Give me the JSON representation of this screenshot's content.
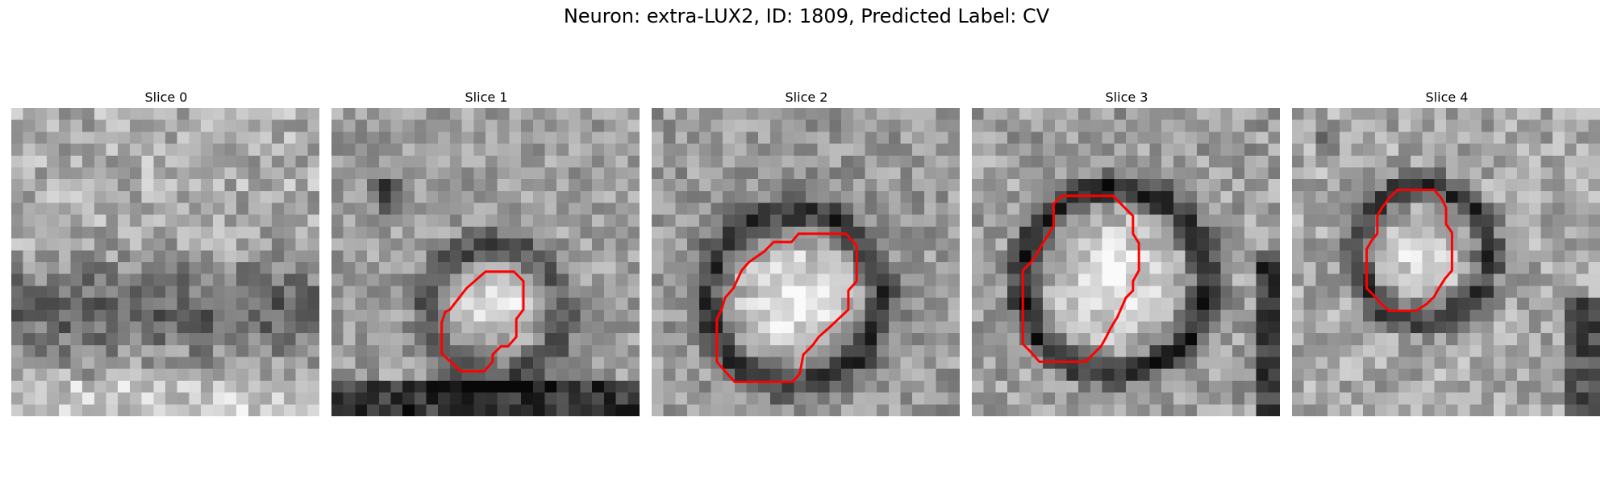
{
  "figure": {
    "title": "Neuron: extra-LUX2, ID: 1809, Predicted Label: CV"
  },
  "colors": {
    "contour": "#ff0000"
  },
  "panels": [
    {
      "title": "Slice 0",
      "contour": []
    },
    {
      "title": "Slice 1",
      "contour": [
        [
          11.4,
          15.2
        ],
        [
          13.0,
          13.8
        ],
        [
          15.4,
          13.8
        ],
        [
          16.2,
          14.6
        ],
        [
          16.2,
          17.0
        ],
        [
          15.6,
          17.8
        ],
        [
          15.6,
          19.3
        ],
        [
          14.9,
          20.1
        ],
        [
          14.3,
          20.1
        ],
        [
          13.6,
          20.8
        ],
        [
          13.6,
          21.4
        ],
        [
          12.9,
          22.2
        ],
        [
          10.9,
          22.2
        ],
        [
          9.3,
          20.7
        ],
        [
          9.3,
          18.1
        ],
        [
          9.6,
          17.2
        ],
        [
          10.0,
          17.0
        ]
      ]
    },
    {
      "title": "Slice 2",
      "contour": [
        [
          9.5,
          12.1
        ],
        [
          10.3,
          11.3
        ],
        [
          11.8,
          11.3
        ],
        [
          12.4,
          10.6
        ],
        [
          16.4,
          10.6
        ],
        [
          17.3,
          11.6
        ],
        [
          17.3,
          14.6
        ],
        [
          16.6,
          15.4
        ],
        [
          16.6,
          17.0
        ],
        [
          14.9,
          18.6
        ],
        [
          14.1,
          19.3
        ],
        [
          13.6,
          20.0
        ],
        [
          12.8,
          20.8
        ],
        [
          12.5,
          22.4
        ],
        [
          11.9,
          23.1
        ],
        [
          7.0,
          23.1
        ],
        [
          6.2,
          22.2
        ],
        [
          5.5,
          21.4
        ],
        [
          5.5,
          17.8
        ],
        [
          5.9,
          17.0
        ],
        [
          6.2,
          16.0
        ],
        [
          6.9,
          15.2
        ],
        [
          7.6,
          13.7
        ],
        [
          8.2,
          13.0
        ]
      ]
    },
    {
      "title": "Slice 3",
      "contour": [
        [
          6.9,
          8.1
        ],
        [
          7.6,
          7.4
        ],
        [
          11.9,
          7.4
        ],
        [
          12.9,
          8.4
        ],
        [
          13.6,
          9.1
        ],
        [
          13.6,
          10.6
        ],
        [
          14.1,
          11.4
        ],
        [
          14.1,
          13.7
        ],
        [
          13.6,
          14.6
        ],
        [
          13.6,
          15.4
        ],
        [
          13.0,
          16.0
        ],
        [
          12.3,
          17.6
        ],
        [
          11.7,
          18.6
        ],
        [
          11.3,
          19.4
        ],
        [
          10.9,
          20.1
        ],
        [
          10.2,
          20.8
        ],
        [
          9.6,
          21.4
        ],
        [
          5.7,
          21.4
        ],
        [
          4.9,
          20.5
        ],
        [
          4.3,
          19.9
        ],
        [
          4.3,
          13.7
        ],
        [
          5.1,
          12.9
        ],
        [
          5.6,
          12.1
        ],
        [
          6.0,
          11.4
        ],
        [
          6.5,
          10.6
        ],
        [
          6.9,
          9.9
        ]
      ]
    },
    {
      "title": "Slice 4",
      "contour": [
        [
          6.7,
          11.2
        ],
        [
          7.2,
          10.6
        ],
        [
          7.2,
          9.1
        ],
        [
          7.6,
          8.4
        ],
        [
          8.2,
          7.6
        ],
        [
          8.9,
          6.9
        ],
        [
          12.0,
          6.9
        ],
        [
          12.6,
          7.6
        ],
        [
          13.0,
          8.4
        ],
        [
          13.0,
          9.8
        ],
        [
          13.5,
          10.5
        ],
        [
          13.5,
          13.7
        ],
        [
          12.9,
          14.4
        ],
        [
          12.4,
          15.2
        ],
        [
          12.0,
          15.9
        ],
        [
          11.4,
          16.5
        ],
        [
          10.5,
          17.1
        ],
        [
          8.2,
          17.1
        ],
        [
          7.5,
          16.5
        ],
        [
          6.9,
          15.8
        ],
        [
          6.3,
          15.2
        ],
        [
          6.3,
          13.7
        ],
        [
          6.3,
          11.9
        ]
      ]
    }
  ]
}
